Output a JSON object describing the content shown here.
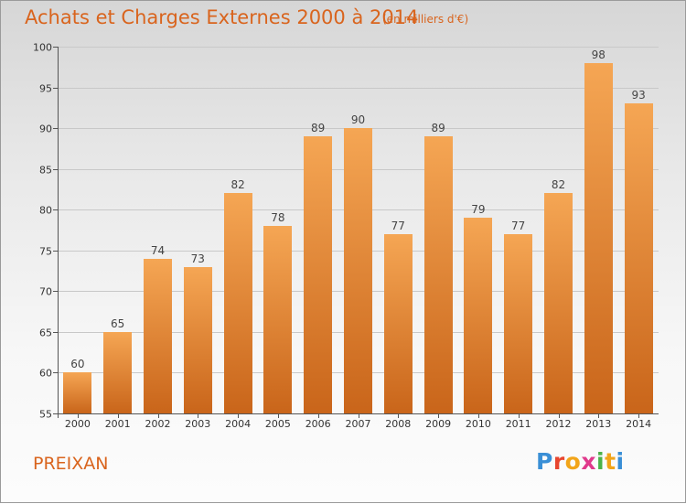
{
  "header": {
    "title": "Achats et Charges Externes 2000 à 2014",
    "unit_note": "(en milliers d'€)"
  },
  "footer": {
    "place": "PREIXAN",
    "logo_text": "Proxiti",
    "logo_colors": [
      "#3a8fd6",
      "#e8462f",
      "#f2a51a",
      "#e03a8c",
      "#4bb24a",
      "#f2a51a",
      "#3a8fd6"
    ]
  },
  "colors": {
    "accent": "#d9641d",
    "bar_top": "#f5a654",
    "bar_bottom": "#c9651a"
  },
  "chart_data": {
    "type": "bar",
    "categories": [
      "2000",
      "2001",
      "2002",
      "2003",
      "2004",
      "2005",
      "2006",
      "2007",
      "2008",
      "2009",
      "2010",
      "2011",
      "2012",
      "2013",
      "2014"
    ],
    "values": [
      60,
      65,
      74,
      73,
      82,
      78,
      89,
      90,
      77,
      89,
      79,
      77,
      82,
      98,
      93
    ],
    "ylim": [
      55,
      100
    ],
    "yticks": [
      55,
      60,
      65,
      70,
      75,
      80,
      85,
      90,
      95,
      100
    ],
    "grid": true
  }
}
